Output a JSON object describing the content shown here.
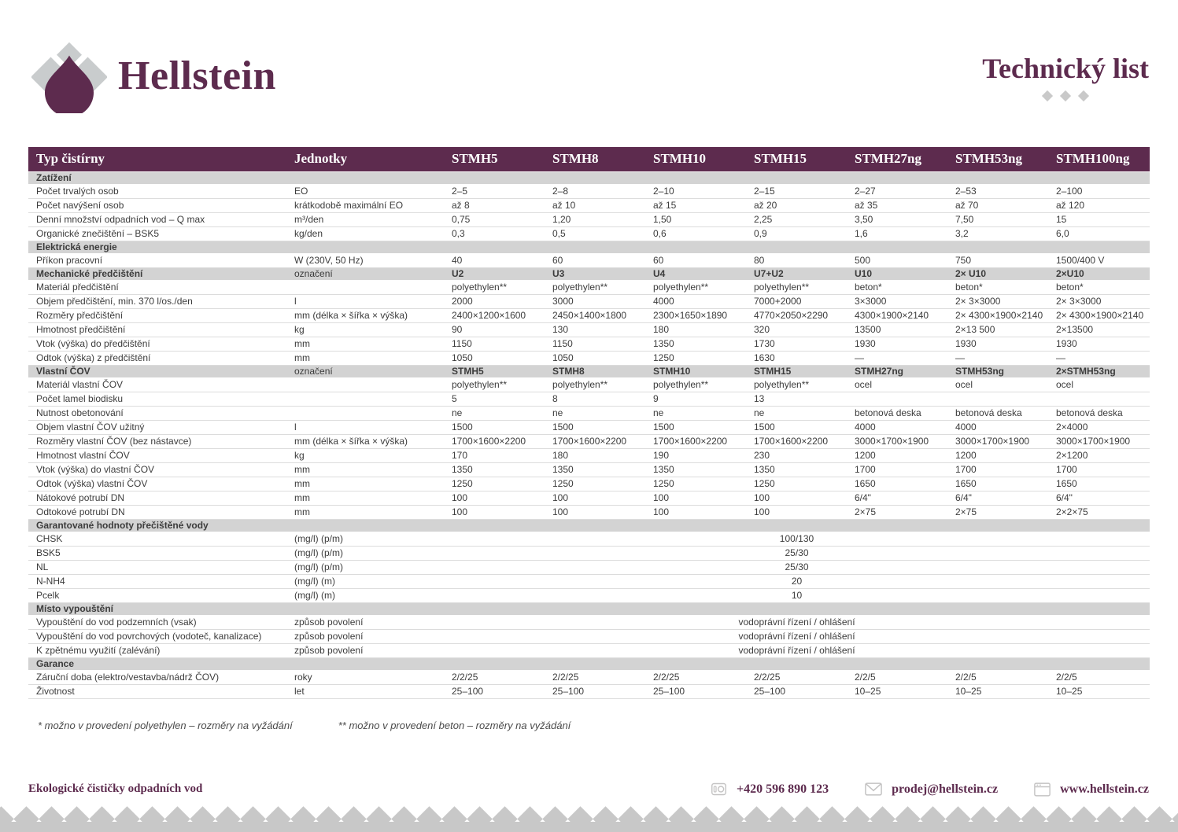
{
  "header": {
    "brand": "Hellstein",
    "title": "Technický list"
  },
  "table": {
    "columns": [
      "Typ čistírny",
      "Jednotky",
      "STMH5",
      "STMH8",
      "STMH10",
      "STMH15",
      "STMH27ng",
      "STMH53ng",
      "STMH100ng"
    ],
    "sections": [
      {
        "label": "Zatížení",
        "units": "",
        "values": null,
        "rows": [
          {
            "label": "Počet trvalých osob",
            "units": "EO",
            "values": [
              "2–5",
              "2–8",
              "2–10",
              "2–15",
              "2–27",
              "2–53",
              "2–100"
            ]
          },
          {
            "label": "Počet navýšení osob",
            "units": "krátkodobě maximální EO",
            "values": [
              "až 8",
              "až 10",
              "až 15",
              "až 20",
              "až 35",
              "až 70",
              "až 120"
            ]
          },
          {
            "label": "Denní množství odpadních vod – Q max",
            "units": "m³/den",
            "values": [
              "0,75",
              "1,20",
              "1,50",
              "2,25",
              "3,50",
              "7,50",
              "15"
            ]
          },
          {
            "label": "Organické znečištění – BSK5",
            "units": "kg/den",
            "values": [
              "0,3",
              "0,5",
              "0,6",
              "0,9",
              "1,6",
              "3,2",
              "6,0"
            ]
          }
        ]
      },
      {
        "label": "Elektrická energie",
        "units": "",
        "values": null,
        "rows": [
          {
            "label": "Příkon pracovní",
            "units": "W (230V, 50 Hz)",
            "values": [
              "40",
              "60",
              "60",
              "80",
              "500",
              "750",
              "1500/400 V"
            ]
          }
        ]
      },
      {
        "label": "Mechanické předčištění",
        "units": "označení",
        "values": [
          "U2",
          "U3",
          "U4",
          "U7+U2",
          "U10",
          "2× U10",
          "2×U10"
        ],
        "rows": [
          {
            "label": "Materiál předčištění",
            "units": "",
            "values": [
              "polyethylen**",
              "polyethylen**",
              "polyethylen**",
              "polyethylen**",
              "beton*",
              "beton*",
              "beton*"
            ]
          },
          {
            "label": "Objem předčištění, min. 370 l/os./den",
            "units": "l",
            "values": [
              "2000",
              "3000",
              "4000",
              "7000+2000",
              "3×3000",
              "2× 3×3000",
              "2× 3×3000"
            ]
          },
          {
            "label": "Rozměry předčištění",
            "units": "mm (délka × šířka × výška)",
            "values": [
              "2400×1200×1600",
              "2450×1400×1800",
              "2300×1650×1890",
              "4770×2050×2290",
              "4300×1900×2140",
              "2× 4300×1900×2140",
              "2× 4300×1900×2140"
            ]
          },
          {
            "label": "Hmotnost předčištění",
            "units": "kg",
            "values": [
              "90",
              "130",
              "180",
              "320",
              "13500",
              "2×13 500",
              "2×13500"
            ]
          },
          {
            "label": "Vtok (výška) do předčištění",
            "units": "mm",
            "values": [
              "1150",
              "1150",
              "1350",
              "1730",
              "1930",
              "1930",
              "1930"
            ]
          },
          {
            "label": "Odtok (výška) z předčištění",
            "units": "mm",
            "values": [
              "1050",
              "1050",
              "1250",
              "1630",
              "—",
              "—",
              "—"
            ]
          }
        ]
      },
      {
        "label": "Vlastní ČOV",
        "units": "označení",
        "values": [
          "STMH5",
          "STMH8",
          "STMH10",
          "STMH15",
          "STMH27ng",
          "STMH53ng",
          "2×STMH53ng"
        ],
        "rows": [
          {
            "label": "Materiál vlastní ČOV",
            "units": "",
            "values": [
              "polyethylen**",
              "polyethylen**",
              "polyethylen**",
              "polyethylen**",
              "ocel",
              "ocel",
              "ocel"
            ]
          },
          {
            "label": "Počet lamel biodisku",
            "units": "",
            "values": [
              "5",
              "8",
              "9",
              "13",
              "",
              "",
              ""
            ]
          },
          {
            "label": "Nutnost obetonování",
            "units": "",
            "values": [
              "ne",
              "ne",
              "ne",
              "ne",
              "betonová deska",
              "betonová deska",
              "betonová deska"
            ]
          },
          {
            "label": "Objem vlastní ČOV užitný",
            "units": "l",
            "values": [
              "1500",
              "1500",
              "1500",
              "1500",
              "4000",
              "4000",
              "2×4000"
            ]
          },
          {
            "label": "Rozměry vlastní ČOV (bez nástavce)",
            "units": "mm (délka × šířka × výška)",
            "values": [
              "1700×1600×2200",
              "1700×1600×2200",
              "1700×1600×2200",
              "1700×1600×2200",
              "3000×1700×1900",
              "3000×1700×1900",
              "3000×1700×1900"
            ]
          },
          {
            "label": "Hmotnost vlastní ČOV",
            "units": "kg",
            "values": [
              "170",
              "180",
              "190",
              "230",
              "1200",
              "1200",
              "2×1200"
            ]
          },
          {
            "label": "Vtok (výška) do vlastní ČOV",
            "units": "mm",
            "values": [
              "1350",
              "1350",
              "1350",
              "1350",
              "1700",
              "1700",
              "1700"
            ]
          },
          {
            "label": "Odtok (výška) vlastní ČOV",
            "units": "mm",
            "values": [
              "1250",
              "1250",
              "1250",
              "1250",
              "1650",
              "1650",
              "1650"
            ]
          },
          {
            "label": "Nátokové potrubí DN",
            "units": "mm",
            "values": [
              "100",
              "100",
              "100",
              "100",
              "6/4\"",
              "6/4\"",
              "6/4\""
            ]
          },
          {
            "label": "Odtokové potrubí DN",
            "units": "mm",
            "values": [
              "100",
              "100",
              "100",
              "100",
              "2×75",
              "2×75",
              "2×2×75"
            ]
          }
        ]
      },
      {
        "label": "Garantované hodnoty přečištěné vody",
        "units": "",
        "values": null,
        "rows": [
          {
            "label": "CHSK",
            "units": "(mg/l) (p/m)",
            "merged": "100/130"
          },
          {
            "label": "BSK5",
            "units": "(mg/l) (p/m)",
            "merged": "25/30"
          },
          {
            "label": "NL",
            "units": "(mg/l) (p/m)",
            "merged": "25/30"
          },
          {
            "label": "N-NH4",
            "units": "(mg/l) (m)",
            "merged": "20"
          },
          {
            "label": "Pcelk",
            "units": "(mg/l) (m)",
            "merged": "10"
          }
        ]
      },
      {
        "label": "Místo vypouštění",
        "units": "",
        "values": null,
        "rows": [
          {
            "label": "Vypouštění do vod podzemních (vsak)",
            "units": "způsob povolení",
            "merged": "vodoprávní řízení / ohlášení"
          },
          {
            "label": "Vypouštění do vod povrchových (vodoteč, kanalizace)",
            "units": "způsob povolení",
            "merged": "vodoprávní řízení / ohlášení"
          },
          {
            "label": "K zpětnému využití (zalévání)",
            "units": "způsob povolení",
            "merged": "vodoprávní řízení / ohlášení"
          }
        ]
      },
      {
        "label": "Garance",
        "units": "",
        "values": null,
        "rows": [
          {
            "label": "Záruční doba (elektro/vestavba/nádrž ČOV)",
            "units": "roky",
            "values": [
              "2/2/25",
              "2/2/25",
              "2/2/25",
              "2/2/25",
              "2/2/5",
              "2/2/5",
              "2/2/5"
            ]
          },
          {
            "label": "Životnost",
            "units": "let",
            "values": [
              "25–100",
              "25–100",
              "25–100",
              "25–100",
              "10–25",
              "10–25",
              "10–25"
            ]
          }
        ]
      }
    ]
  },
  "footnotes": [
    "* možno v provedení polyethylen – rozměry na vyžádání",
    "** možno v provedení beton – rozměry na vyžádání"
  ],
  "footer": {
    "tagline": "Ekologické čističky odpadních vod",
    "phone": "+420 596 890 123",
    "email": "prodej@hellstein.cz",
    "web": "www.hellstein.cz"
  },
  "colors": {
    "accent": "#5d2b4e",
    "section_bg": "#d3d3d3",
    "diamond_gray": "#c8c8c8",
    "icon_gray": "#c4c3c3"
  },
  "icons": [
    "drop-logo-icon",
    "phone-icon",
    "envelope-icon",
    "browser-icon",
    "diamond-icon"
  ]
}
